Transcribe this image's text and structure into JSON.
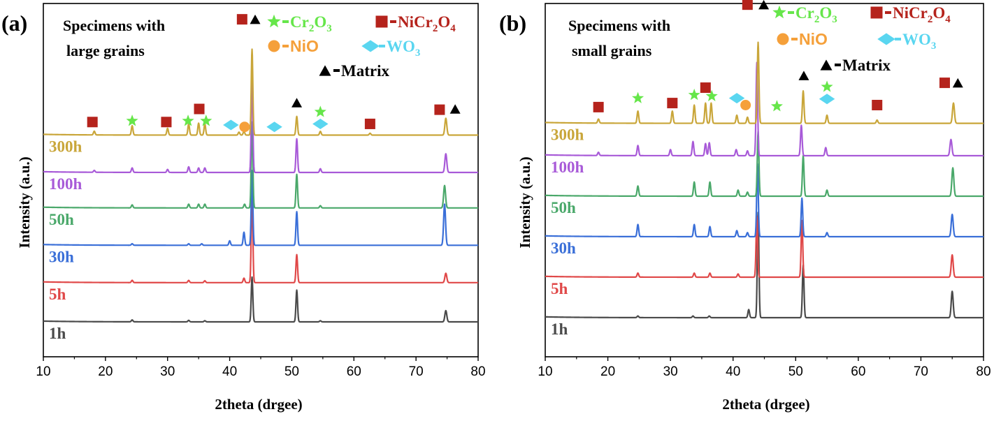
{
  "chart_data": [
    {
      "type": "line",
      "panel_label": "(a)",
      "title": "Specimens with large grains",
      "title_lines": [
        "Specimens with",
        "large grains"
      ],
      "xlabel": "2theta (drgee)",
      "ylabel": "Intensity (a.u.)",
      "xlim": [
        10,
        80
      ],
      "xticks": [
        10,
        20,
        30,
        40,
        50,
        60,
        70,
        80
      ],
      "yticks": false,
      "grid": false,
      "legend_items": [
        {
          "symbol": "star",
          "color": "#66e64a",
          "text": "Cr",
          "sub": [
            "2",
            "3"
          ],
          "suffix": [
            "O",
            ""
          ]
        },
        {
          "symbol": "square",
          "color": "#b5231c",
          "text": "NiCr",
          "sub": [
            "2",
            "4"
          ],
          "suffix": [
            "O",
            ""
          ]
        },
        {
          "symbol": "circle",
          "color": "#f5a03a",
          "text": "NiO"
        },
        {
          "symbol": "diamond",
          "color": "#5ad6f0",
          "text": "WO",
          "sub": [
            "3"
          ]
        },
        {
          "symbol": "triangle",
          "color": "#000000",
          "text": "Matrix"
        }
      ],
      "series": [
        {
          "name": "1h",
          "color": "#4a4a4a",
          "baseline": 0.0,
          "peaks": [
            [
              24.3,
              0.05
            ],
            [
              33.4,
              0.04
            ],
            [
              36.0,
              0.03
            ],
            [
              43.6,
              1.2
            ],
            [
              50.8,
              0.85
            ],
            [
              54.6,
              0.03
            ],
            [
              74.8,
              0.3
            ]
          ]
        },
        {
          "name": "5h",
          "color": "#e04848",
          "baseline": 1.05,
          "peaks": [
            [
              24.3,
              0.06
            ],
            [
              33.4,
              0.06
            ],
            [
              36.0,
              0.05
            ],
            [
              42.3,
              0.12
            ],
            [
              43.6,
              2.4
            ],
            [
              50.8,
              0.75
            ],
            [
              74.8,
              0.25
            ]
          ]
        },
        {
          "name": "30h",
          "color": "#3a6fd8",
          "baseline": 2.05,
          "peaks": [
            [
              24.3,
              0.04
            ],
            [
              33.4,
              0.04
            ],
            [
              35.5,
              0.04
            ],
            [
              40.0,
              0.12
            ],
            [
              42.3,
              0.35
            ],
            [
              43.6,
              2.0
            ],
            [
              50.8,
              0.9
            ],
            [
              74.6,
              1.1
            ]
          ]
        },
        {
          "name": "50h",
          "color": "#4aa86a",
          "baseline": 3.05,
          "peaks": [
            [
              24.3,
              0.08
            ],
            [
              33.4,
              0.1
            ],
            [
              35.0,
              0.1
            ],
            [
              36.0,
              0.1
            ],
            [
              42.4,
              0.1
            ],
            [
              43.6,
              2.3
            ],
            [
              50.8,
              0.9
            ],
            [
              54.6,
              0.06
            ],
            [
              74.6,
              0.6
            ]
          ]
        },
        {
          "name": "100h",
          "color": "#a85ad8",
          "baseline": 4.0,
          "peaks": [
            [
              18.2,
              0.05
            ],
            [
              24.3,
              0.12
            ],
            [
              30.0,
              0.08
            ],
            [
              33.4,
              0.15
            ],
            [
              35.0,
              0.12
            ],
            [
              36.0,
              0.12
            ],
            [
              43.6,
              2.6
            ],
            [
              50.8,
              0.9
            ],
            [
              54.6,
              0.1
            ],
            [
              74.8,
              0.5
            ]
          ]
        },
        {
          "name": "300h",
          "color": "#c9a63a",
          "baseline": 5.0,
          "peaks": [
            [
              18.2,
              0.1
            ],
            [
              24.3,
              0.25
            ],
            [
              30.0,
              0.18
            ],
            [
              33.4,
              0.3
            ],
            [
              35.0,
              0.32
            ],
            [
              36.0,
              0.3
            ],
            [
              41.5,
              0.08
            ],
            [
              42.3,
              0.1
            ],
            [
              43.6,
              2.3
            ],
            [
              50.8,
              0.5
            ],
            [
              54.6,
              0.1
            ],
            [
              62.6,
              0.05
            ],
            [
              74.8,
              0.45
            ]
          ]
        }
      ],
      "markers": [
        {
          "symbol": "square",
          "x": 17.9,
          "level": 5.35
        },
        {
          "symbol": "star",
          "x": 24.3,
          "level": 5.38
        },
        {
          "symbol": "square",
          "x": 29.8,
          "level": 5.35
        },
        {
          "symbol": "star",
          "x": 33.3,
          "level": 5.38
        },
        {
          "symbol": "square",
          "x": 35.1,
          "level": 5.7
        },
        {
          "symbol": "star",
          "x": 36.2,
          "level": 5.38
        },
        {
          "symbol": "diamond",
          "x": 40.2,
          "level": 5.27
        },
        {
          "symbol": "circle",
          "x": 42.4,
          "level": 5.22
        },
        {
          "symbol": "diamond",
          "x": 47.2,
          "level": 5.22
        },
        {
          "symbol": "triangle",
          "x": 50.8,
          "level": 5.87
        },
        {
          "symbol": "star",
          "x": 54.6,
          "level": 5.62
        },
        {
          "symbol": "diamond",
          "x": 54.6,
          "level": 5.3
        },
        {
          "symbol": "square",
          "x": 62.6,
          "level": 5.3
        },
        {
          "symbol": "square",
          "x": 73.8,
          "level": 5.68
        },
        {
          "symbol": "triangle",
          "x": 76.3,
          "level": 5.7
        },
        {
          "symbol": "square",
          "x": 42.0,
          "level": 8.1
        },
        {
          "symbol": "triangle",
          "x": 44.1,
          "level": 8.1
        }
      ]
    },
    {
      "type": "line",
      "panel_label": "(b)",
      "title": "Specimens with small grains",
      "title_lines": [
        "Specimens with",
        "small grains"
      ],
      "xlabel": "2theta (drgee)",
      "ylabel": "Intensity (a.u.)",
      "xlim": [
        10,
        80
      ],
      "xticks": [
        10,
        20,
        30,
        40,
        50,
        60,
        70,
        80
      ],
      "yticks": false,
      "grid": false,
      "series": [
        {
          "name": "1h",
          "color": "#4a4a4a",
          "baseline": 0.0,
          "peaks": [
            [
              24.8,
              0.04
            ],
            [
              33.6,
              0.04
            ],
            [
              36.2,
              0.04
            ],
            [
              42.5,
              0.2
            ],
            [
              44.0,
              2.6
            ],
            [
              51.2,
              1.3
            ],
            [
              75.0,
              0.65
            ]
          ]
        },
        {
          "name": "5h",
          "color": "#e04848",
          "baseline": 1.0,
          "peaks": [
            [
              24.8,
              0.1
            ],
            [
              33.8,
              0.1
            ],
            [
              36.3,
              0.1
            ],
            [
              40.8,
              0.08
            ],
            [
              43.8,
              1.5
            ],
            [
              51.0,
              1.4
            ],
            [
              75.0,
              0.55
            ]
          ]
        },
        {
          "name": "30h",
          "color": "#3a6fd8",
          "baseline": 2.0,
          "peaks": [
            [
              24.8,
              0.3
            ],
            [
              33.8,
              0.3
            ],
            [
              36.3,
              0.25
            ],
            [
              40.6,
              0.15
            ],
            [
              42.3,
              0.1
            ],
            [
              43.9,
              1.8
            ],
            [
              51.0,
              0.95
            ],
            [
              55.0,
              0.1
            ],
            [
              75.0,
              0.55
            ]
          ]
        },
        {
          "name": "50h",
          "color": "#4aa86a",
          "baseline": 3.0,
          "peaks": [
            [
              24.8,
              0.25
            ],
            [
              33.8,
              0.35
            ],
            [
              36.3,
              0.35
            ],
            [
              40.8,
              0.15
            ],
            [
              42.3,
              0.1
            ],
            [
              44.0,
              1.6
            ],
            [
              51.2,
              1.0
            ],
            [
              55.0,
              0.15
            ],
            [
              75.1,
              0.7
            ]
          ]
        },
        {
          "name": "100h",
          "color": "#a85ad8",
          "baseline": 4.0,
          "peaks": [
            [
              18.5,
              0.08
            ],
            [
              24.8,
              0.25
            ],
            [
              30.0,
              0.15
            ],
            [
              33.6,
              0.35
            ],
            [
              35.6,
              0.3
            ],
            [
              36.2,
              0.32
            ],
            [
              40.5,
              0.15
            ],
            [
              42.3,
              0.12
            ],
            [
              43.8,
              2.3
            ],
            [
              50.9,
              0.75
            ],
            [
              54.8,
              0.2
            ],
            [
              74.8,
              0.4
            ]
          ]
        },
        {
          "name": "300h",
          "color": "#c9a63a",
          "baseline": 4.8,
          "peaks": [
            [
              18.5,
              0.1
            ],
            [
              24.8,
              0.3
            ],
            [
              30.3,
              0.3
            ],
            [
              33.8,
              0.45
            ],
            [
              35.6,
              0.5
            ],
            [
              36.5,
              0.5
            ],
            [
              40.6,
              0.2
            ],
            [
              42.3,
              0.15
            ],
            [
              44.0,
              2.0
            ],
            [
              51.2,
              0.8
            ],
            [
              55.0,
              0.2
            ],
            [
              63.0,
              0.08
            ],
            [
              75.2,
              0.5
            ]
          ]
        }
      ],
      "markers": [
        {
          "symbol": "square",
          "x": 18.5,
          "level": 5.2
        },
        {
          "symbol": "star",
          "x": 24.8,
          "level": 5.42
        },
        {
          "symbol": "square",
          "x": 30.3,
          "level": 5.3
        },
        {
          "symbol": "star",
          "x": 33.8,
          "level": 5.5
        },
        {
          "symbol": "square",
          "x": 35.6,
          "level": 5.68
        },
        {
          "symbol": "star",
          "x": 36.6,
          "level": 5.47
        },
        {
          "symbol": "diamond",
          "x": 40.6,
          "level": 5.42
        },
        {
          "symbol": "circle",
          "x": 42.0,
          "level": 5.25
        },
        {
          "symbol": "star",
          "x": 47.0,
          "level": 5.22
        },
        {
          "symbol": "triangle",
          "x": 51.3,
          "level": 5.98
        },
        {
          "symbol": "star",
          "x": 55.0,
          "level": 5.7
        },
        {
          "symbol": "diamond",
          "x": 55.0,
          "level": 5.4
        },
        {
          "symbol": "square",
          "x": 63.0,
          "level": 5.25
        },
        {
          "symbol": "square",
          "x": 73.8,
          "level": 5.8
        },
        {
          "symbol": "triangle",
          "x": 75.9,
          "level": 5.8
        },
        {
          "symbol": "square",
          "x": 42.3,
          "level": 7.73
        },
        {
          "symbol": "triangle",
          "x": 44.9,
          "level": 7.73
        }
      ],
      "legend_items": [
        {
          "symbol": "star",
          "color": "#66e64a",
          "text": "Cr",
          "sub": [
            "2",
            "3"
          ],
          "suffix": [
            "O",
            ""
          ]
        },
        {
          "symbol": "square",
          "color": "#b5231c",
          "text": "NiCr",
          "sub": [
            "2",
            "4"
          ],
          "suffix": [
            "O",
            ""
          ]
        },
        {
          "symbol": "circle",
          "color": "#f5a03a",
          "text": "NiO"
        },
        {
          "symbol": "diamond",
          "color": "#5ad6f0",
          "text": "WO",
          "sub": [
            "3"
          ]
        },
        {
          "symbol": "triangle",
          "color": "#000000",
          "text": "Matrix"
        }
      ]
    }
  ],
  "symbol_colors": {
    "star": "#66e64a",
    "square": "#b5231c",
    "circle": "#f5a03a",
    "diamond": "#5ad6f0",
    "triangle": "#000000"
  }
}
